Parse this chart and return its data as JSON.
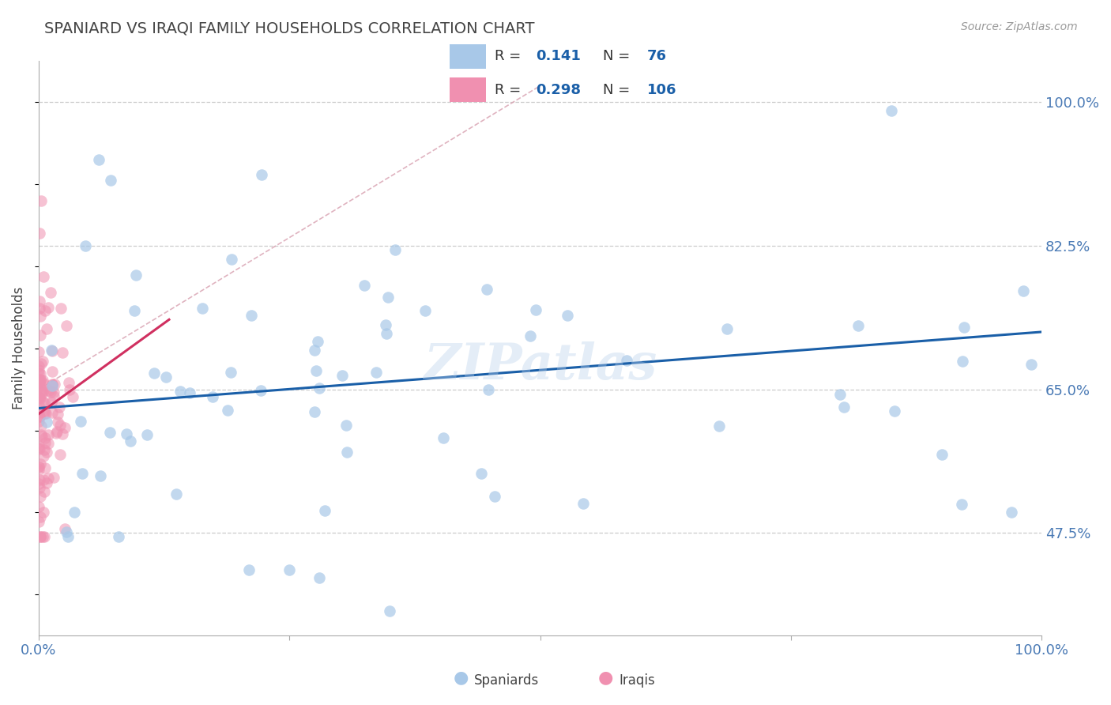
{
  "title": "SPANIARD VS IRAQI FAMILY HOUSEHOLDS CORRELATION CHART",
  "source": "Source: ZipAtlas.com",
  "ylabel": "Family Households",
  "blue_color": "#a8c8e8",
  "pink_color": "#f090b0",
  "blue_line_color": "#1a5fa8",
  "pink_line_color": "#d03060",
  "R_blue": 0.141,
  "N_blue": 76,
  "R_pink": 0.298,
  "N_pink": 106,
  "title_color": "#444444",
  "axis_color": "#4a7ab5",
  "watermark": "ZIPatlas",
  "xlim": [
    0,
    1.0
  ],
  "ylim": [
    0.35,
    1.05
  ],
  "yticks": [
    0.475,
    0.65,
    0.825,
    1.0
  ],
  "ytick_labels": [
    "47.5%",
    "65.0%",
    "82.5%",
    "100.0%"
  ],
  "grid_color": "#cccccc",
  "diag_color": "#d8a0b0",
  "legend_box_color": "#e8e8e8"
}
